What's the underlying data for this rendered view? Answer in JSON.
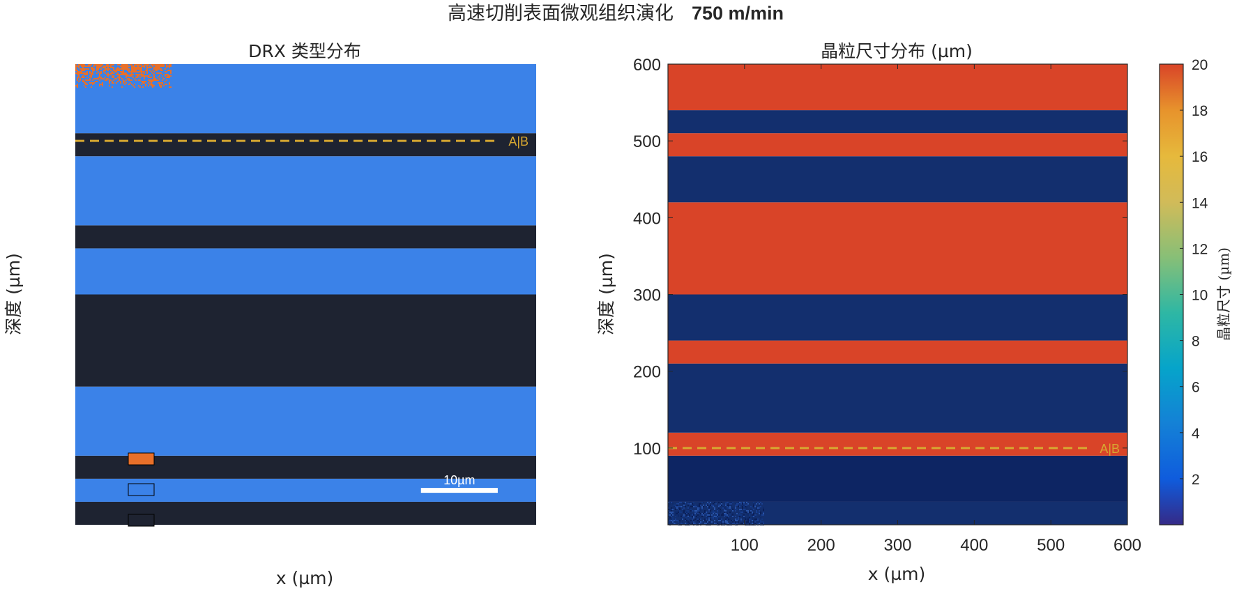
{
  "figure": {
    "title_cn": "高速切削表面微观组织演化",
    "title_speed": "750 m/min"
  },
  "colors": {
    "drx_blue": "#3b82e8",
    "drx_dark": "#1e2331",
    "drx_orange": "#e8702a",
    "grain_red": "#d94428",
    "grain_navy": "#132f6e",
    "marker_line": "#d7a731",
    "axis": "#262626"
  },
  "chart_data": [
    {
      "type": "heatmap",
      "title": "DRX 类型分布",
      "xlabel": "x (µm)",
      "ylabel": "深度 (µm)",
      "xlim": [
        0,
        600
      ],
      "ylim": [
        0,
        600
      ],
      "ticks_visible": false,
      "bands": [
        {
          "y0": 0,
          "y1": 30,
          "cls": "dark"
        },
        {
          "y0": 30,
          "y1": 60,
          "cls": "blue"
        },
        {
          "y0": 60,
          "y1": 90,
          "cls": "dark"
        },
        {
          "y0": 90,
          "y1": 180,
          "cls": "blue"
        },
        {
          "y0": 180,
          "y1": 300,
          "cls": "dark"
        },
        {
          "y0": 300,
          "y1": 360,
          "cls": "blue"
        },
        {
          "y0": 360,
          "y1": 390,
          "cls": "dark"
        },
        {
          "y0": 390,
          "y1": 480,
          "cls": "blue"
        },
        {
          "y0": 480,
          "y1": 510,
          "cls": "dark"
        },
        {
          "y0": 510,
          "y1": 600,
          "cls": "blue"
        }
      ],
      "noise_patch": {
        "x0": 0,
        "x1": 125,
        "y0": 570,
        "y1": 600,
        "color": "orange"
      },
      "interface_line": {
        "y": 500,
        "label": "A|B"
      },
      "legend_swatches": [
        {
          "color": "orange"
        },
        {
          "color": "blue"
        },
        {
          "color": "dark"
        }
      ],
      "scale_bar": {
        "label": "10µm",
        "x0": 450,
        "x1": 550,
        "y": 48
      }
    },
    {
      "type": "heatmap",
      "title": "晶粒尺寸分布 (µm)",
      "xlabel": "x (µm)",
      "ylabel": "深度 (µm)",
      "xlim": [
        0,
        600
      ],
      "ylim": [
        0,
        600
      ],
      "xticks": [
        100,
        200,
        300,
        400,
        500,
        600
      ],
      "yticks": [
        100,
        200,
        300,
        400,
        500,
        600
      ],
      "bands": [
        {
          "y0": 0,
          "y1": 30,
          "value": 1.2
        },
        {
          "y0": 30,
          "y1": 90,
          "value": 0.6
        },
        {
          "y0": 90,
          "y1": 120,
          "value": 20
        },
        {
          "y0": 120,
          "y1": 210,
          "value": 1.0
        },
        {
          "y0": 210,
          "y1": 240,
          "value": 20
        },
        {
          "y0": 240,
          "y1": 300,
          "value": 1.0
        },
        {
          "y0": 300,
          "y1": 420,
          "value": 20
        },
        {
          "y0": 420,
          "y1": 480,
          "value": 1.0
        },
        {
          "y0": 480,
          "y1": 510,
          "value": 20
        },
        {
          "y0": 510,
          "y1": 540,
          "value": 1.0
        },
        {
          "y0": 540,
          "y1": 600,
          "value": 20
        }
      ],
      "noise_patch": {
        "x0": 0,
        "x1": 125,
        "y0": 0,
        "y1": 30,
        "value_range": [
          0.2,
          2.5
        ]
      },
      "interface_line": {
        "y": 100,
        "label": "A|B"
      },
      "colorbar": {
        "label": "晶粒尺寸 (µm)",
        "clim": [
          0,
          20
        ],
        "ticks": [
          2,
          4,
          6,
          8,
          10,
          12,
          14,
          16,
          18,
          20
        ],
        "colormap": "parula"
      }
    }
  ]
}
